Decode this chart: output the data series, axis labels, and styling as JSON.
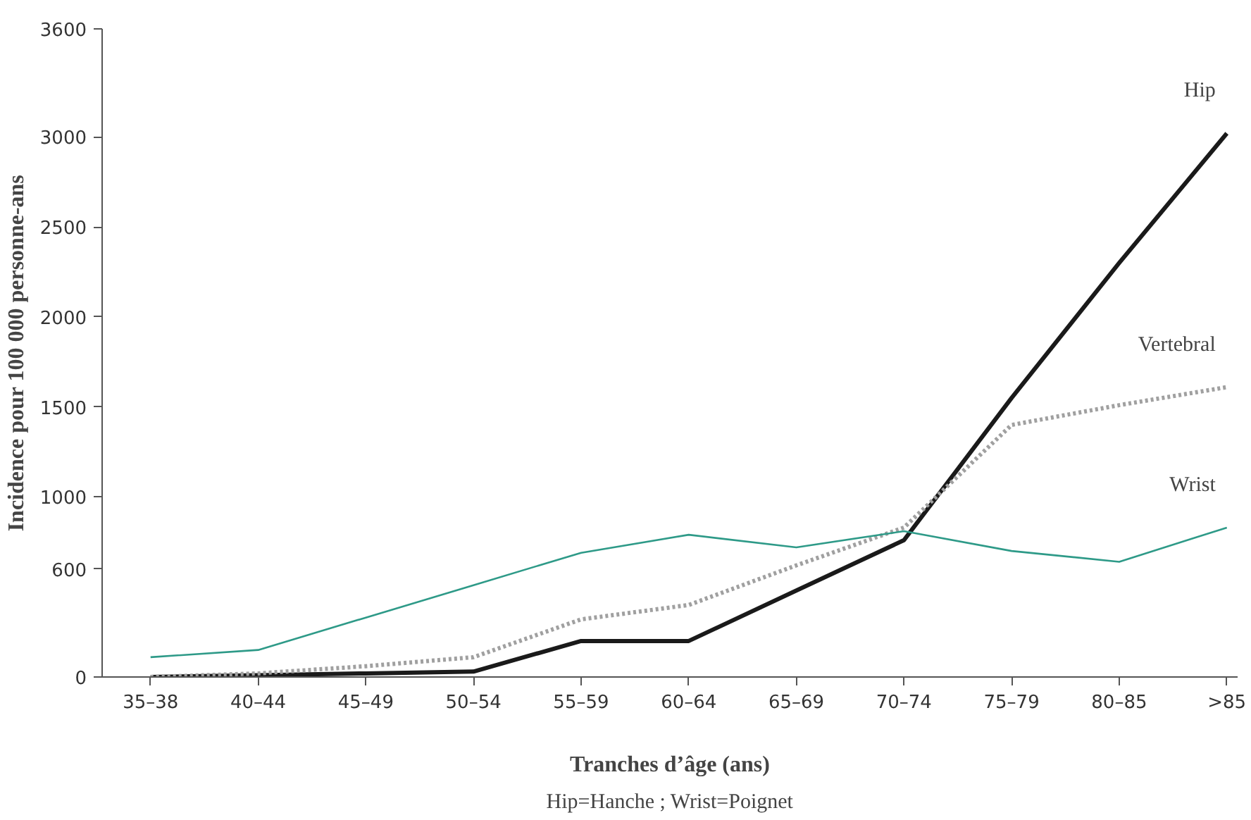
{
  "chart_data": {
    "type": "line",
    "xlabel": "Tranches d’âge (ans)",
    "ylabel": "Incidence pour 100 000 personne-ans",
    "annotations": [
      "Hip=Hanche ; Wrist=Poignet"
    ],
    "categories": [
      "35–38",
      "40–44",
      "45–49",
      "50–54",
      "55–59",
      "60–64",
      "65–69",
      "70–74",
      "75–79",
      "80–85",
      ">85"
    ],
    "ylim": [
      0,
      3600
    ],
    "yticks": [
      0,
      600,
      1000,
      1500,
      2000,
      2500,
      3000,
      3600
    ],
    "grid": false,
    "marker": "none",
    "series": [
      {
        "name": "Hip",
        "color": "#1a1a1a",
        "line_style": "solid",
        "values": [
          0,
          10,
          20,
          30,
          200,
          200,
          480,
          760,
          1550,
          2300,
          3020
        ]
      },
      {
        "name": "Vertebral",
        "color": "#a0a0a0",
        "line_style": "dotted",
        "values": [
          0,
          20,
          60,
          110,
          320,
          400,
          620,
          830,
          1400,
          1510,
          1610
        ]
      },
      {
        "name": "Wrist",
        "color": "#2e9a88",
        "line_style": "solid",
        "values": [
          110,
          150,
          330,
          510,
          690,
          790,
          720,
          810,
          700,
          640,
          830
        ]
      }
    ]
  }
}
